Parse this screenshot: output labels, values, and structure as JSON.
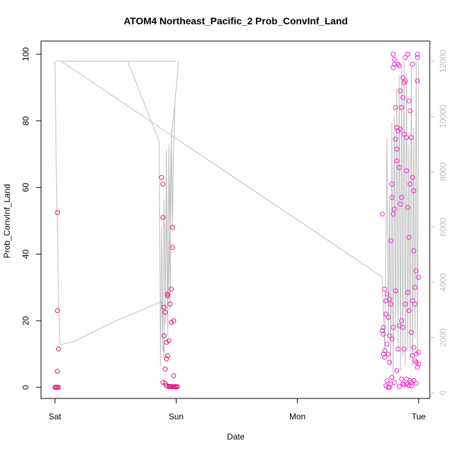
{
  "chart_data": {
    "type": "scatter",
    "title": "ATOM4 Northeast_Pacific_2 Prob_ConvInf_Land",
    "xlabel": "Date",
    "ylabel": "Prob_ConvInf_Land",
    "x_ticks": [
      "Sat",
      "Sun",
      "Mon",
      "Tue"
    ],
    "y_ticks": [
      "0",
      "20",
      "40",
      "60",
      "80",
      "100"
    ],
    "y_right_ticks": [
      "0",
      "2000",
      "4000",
      "6000",
      "8000",
      "10000",
      "12000"
    ],
    "xlim_days": [
      -0.05,
      3.07
    ],
    "ylim": [
      -4,
      104
    ],
    "ylim_right": [
      0,
      12000
    ],
    "grid": false,
    "legend": "none",
    "point_colors": [
      "#dd1177",
      "#ee22cc"
    ],
    "line_color": "#bdbdbd",
    "line_series": {
      "x": [
        0.0,
        0.01,
        0.03,
        0.04,
        0.05,
        0.06,
        0.07,
        0.08,
        0.09,
        0.1,
        0.12,
        0.15,
        0.5,
        0.88,
        0.9,
        0.92,
        0.93,
        0.96,
        0.98,
        1.0,
        1.02,
        1.0,
        0.99,
        0.98,
        0.97,
        0.96,
        0.95,
        0.94,
        0.93,
        0.92,
        0.91,
        0.9,
        0.89,
        0.88,
        0.87,
        0.86,
        0.6,
        0.3,
        0.05,
        0.02,
        0.01,
        1.0,
        0.7,
        0.4,
        0.1,
        0.05,
        2.7,
        2.72,
        2.74,
        2.75,
        2.76,
        2.77,
        2.78,
        2.79,
        2.8,
        2.81,
        2.82,
        2.83,
        2.84,
        2.85,
        2.86,
        2.87,
        2.88,
        2.89,
        2.9,
        2.91,
        2.92,
        2.93,
        2.94,
        2.95,
        2.96,
        2.97,
        2.98,
        2.99,
        3.0
      ],
      "y": [
        12000,
        8500,
        3500,
        1800,
        1750,
        1750,
        1760,
        1780,
        1790,
        1800,
        1820,
        1850,
        2600,
        3300,
        1200,
        6800,
        2500,
        9300,
        10000,
        11000,
        12000,
        11000,
        10500,
        9000,
        6000,
        9500,
        3000,
        9000,
        2000,
        8800,
        2500,
        7000,
        1500,
        6000,
        1000,
        9100,
        12000,
        12000,
        12000,
        12000,
        12000,
        12000,
        12000,
        12000,
        12000,
        12000,
        4200,
        1500,
        9200,
        2000,
        7000,
        1000,
        9800,
        500,
        10000,
        2200,
        11000,
        1500,
        11500,
        800,
        11800,
        1300,
        12000,
        1000,
        11600,
        1500,
        9000,
        1200,
        11800,
        1000,
        9600,
        2000,
        12000,
        1400,
        12000
      ]
    },
    "series": [
      {
        "x": [
          0.01,
          0.01,
          0.01,
          0.02,
          0.02,
          0.03,
          0.02,
          0.03,
          0.0,
          0.02,
          0.88,
          0.89,
          0.89,
          0.9,
          0.9,
          0.91,
          0.92,
          0.92,
          0.93,
          0.93,
          0.94,
          0.94,
          0.95,
          0.95,
          0.96,
          0.96,
          0.97,
          0.97,
          0.98,
          0.98,
          0.99,
          1.0,
          0.89,
          0.91,
          0.92,
          0.94,
          0.95,
          0.96,
          0.97,
          0.98,
          0.99,
          1.0,
          1.01,
          0.93,
          0.91
        ],
        "y": [
          0,
          0,
          0,
          52.5,
          23,
          11.5,
          4.8,
          0,
          0,
          0,
          63,
          61,
          51,
          24,
          15.5,
          5.5,
          8.5,
          13.5,
          28,
          27.5,
          14,
          0.3,
          0.2,
          25,
          19.5,
          29.5,
          48,
          42,
          20,
          3.5,
          0.2,
          0.2,
          1.5,
          1.2,
          0.5,
          0.2,
          0.3,
          0.2,
          0.2,
          0.2,
          0.2,
          0.1,
          0.2,
          9.5,
          22.5
        ]
      },
      {
        "x": [
          2.7,
          2.7,
          2.71,
          2.71,
          2.71,
          2.72,
          2.72,
          2.72,
          2.73,
          2.73,
          2.73,
          2.74,
          2.74,
          2.74,
          2.75,
          2.75,
          2.75,
          2.76,
          2.76,
          2.76,
          2.77,
          2.77,
          2.77,
          2.78,
          2.78,
          2.78,
          2.79,
          2.79,
          2.79,
          2.8,
          2.8,
          2.8,
          2.81,
          2.81,
          2.81,
          2.82,
          2.82,
          2.82,
          2.83,
          2.83,
          2.83,
          2.84,
          2.84,
          2.84,
          2.85,
          2.85,
          2.85,
          2.86,
          2.86,
          2.86,
          2.87,
          2.87,
          2.87,
          2.88,
          2.88,
          2.88,
          2.89,
          2.89,
          2.89,
          2.9,
          2.9,
          2.9,
          2.91,
          2.91,
          2.91,
          2.92,
          2.92,
          2.92,
          2.93,
          2.93,
          2.93,
          2.94,
          2.94,
          2.94,
          2.95,
          2.95,
          2.95,
          2.96,
          2.96,
          2.96,
          2.97,
          2.97,
          2.97,
          2.98,
          2.98,
          2.98,
          2.99,
          2.99,
          2.99,
          3.0,
          3.0,
          3.0,
          2.76,
          2.78,
          2.8,
          2.82,
          2.84,
          2.86,
          2.88,
          2.9,
          2.92,
          2.94,
          2.96,
          2.98,
          2.79,
          2.83,
          2.87,
          2.91,
          2.95,
          2.99
        ],
        "y": [
          52,
          17,
          18,
          16,
          10,
          29.5,
          11,
          9,
          26,
          22,
          0.5,
          28,
          13,
          2,
          21,
          10,
          0,
          26.5,
          15.5,
          7.5,
          44,
          25,
          1,
          61,
          57,
          14.5,
          96,
          52,
          18,
          98.5,
          97,
          53.5,
          84,
          74.5,
          29,
          78,
          71.5,
          68,
          97,
          77,
          11.5,
          96.5,
          66,
          18.5,
          89,
          77.5,
          55,
          84,
          57,
          20,
          87,
          18,
          1,
          91.5,
          76,
          11.5,
          99,
          92,
          25,
          75,
          65,
          2.5,
          100,
          54,
          28.5,
          86,
          45,
          23,
          83,
          61,
          2,
          75,
          16.5,
          1.5,
          63,
          9.5,
          26,
          59,
          41,
          12,
          30,
          25,
          8,
          35,
          10,
          7.5,
          99,
          92,
          6,
          33,
          10.5,
          7,
          0,
          3,
          1.5,
          5,
          0.3,
          2.5,
          0.8,
          1,
          0.5,
          0.4,
          2,
          1.2,
          100,
          97,
          93,
          100,
          97,
          100
        ]
      }
    ]
  }
}
